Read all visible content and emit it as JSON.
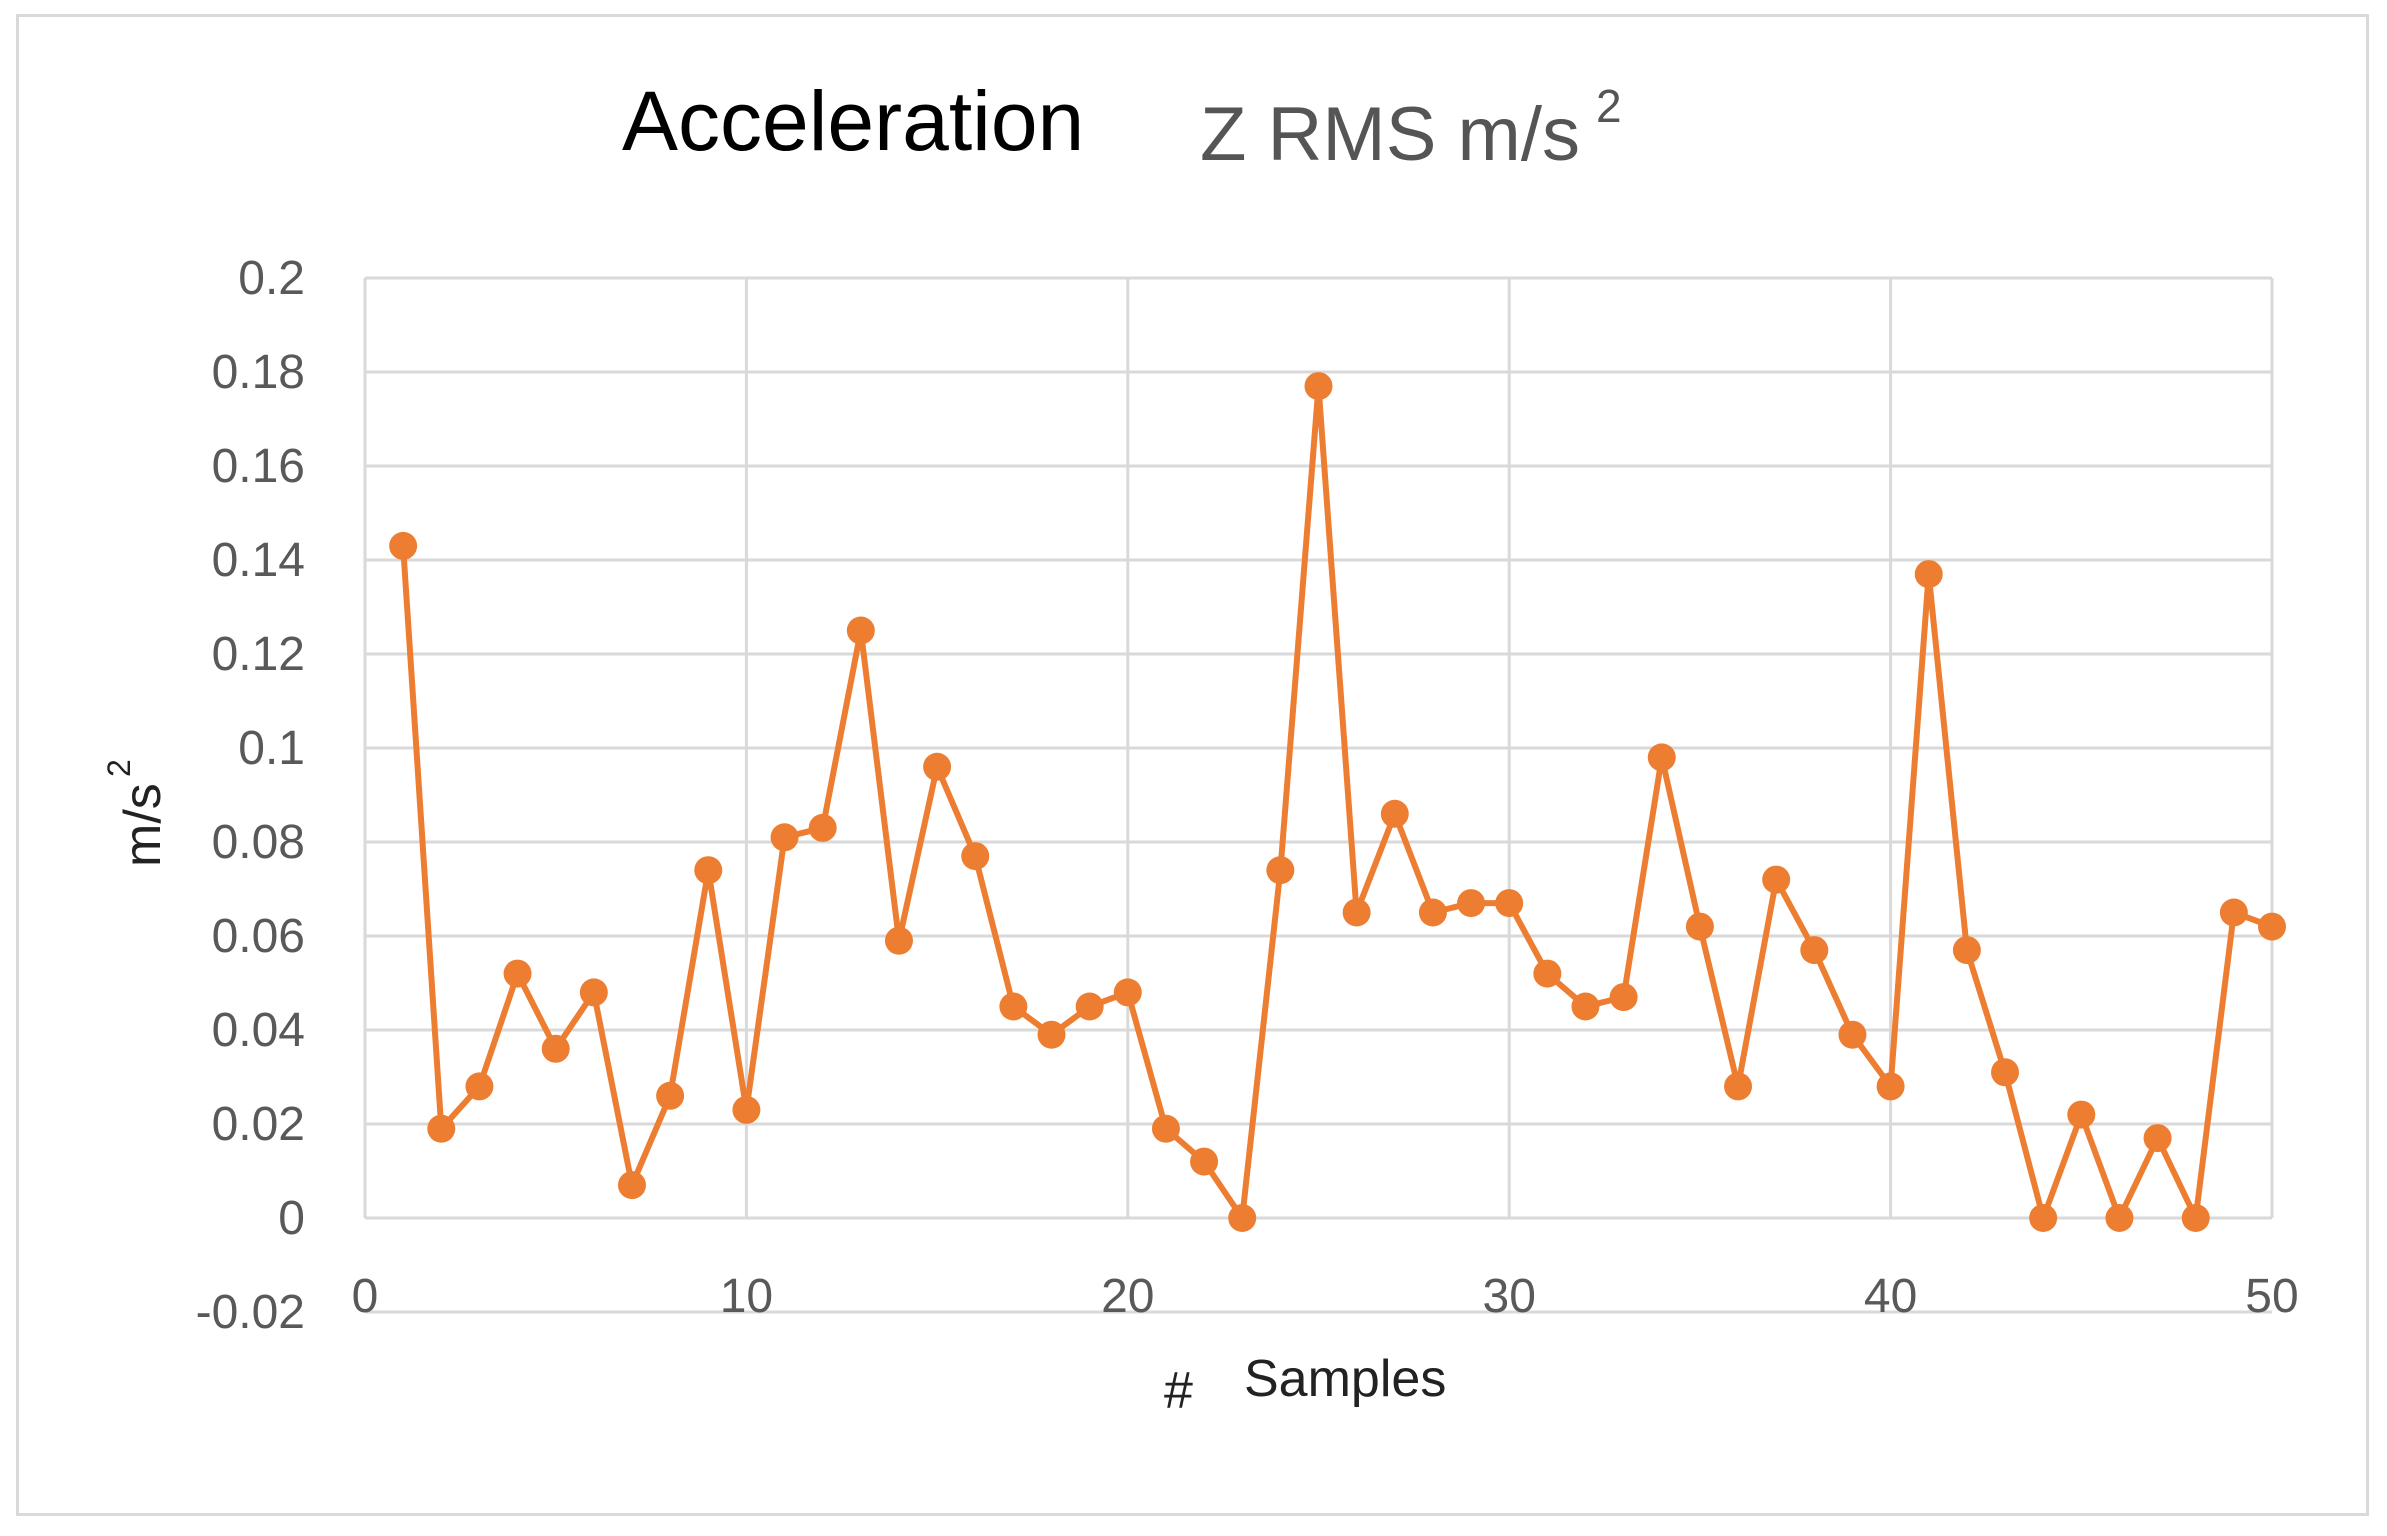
{
  "chart_data": {
    "type": "line",
    "title": "Acceleration",
    "subtitle": "Z RMS m/s",
    "subtitle_sup": "2",
    "xlabel_symbol": "#",
    "xlabel": "Samples",
    "ylabel": "m/s",
    "ylabel_sup": "2",
    "xlim": [
      0,
      50
    ],
    "ylim": [
      -0.02,
      0.2
    ],
    "x_ticks": [
      "0",
      "10",
      "20",
      "30",
      "40",
      "50"
    ],
    "y_ticks": [
      "-0.02",
      "0",
      "0.02",
      "0.04",
      "0.06",
      "0.08",
      "0.1",
      "0.12",
      "0.14",
      "0.16",
      "0.18",
      "0.2"
    ],
    "grid": true,
    "series_color": "#ED7D31",
    "series": [
      {
        "x": [
          1,
          2,
          3,
          4,
          5,
          6,
          7,
          8,
          9,
          10,
          11,
          12,
          13,
          14,
          15,
          16,
          17,
          18,
          19,
          20,
          21,
          22,
          23,
          24,
          25,
          26,
          27,
          28,
          29,
          30,
          31,
          32,
          33,
          34,
          35,
          36,
          37,
          38,
          39,
          40,
          41,
          42,
          43,
          44,
          45,
          46,
          47,
          48,
          49,
          50
        ],
        "values": [
          0.143,
          0.019,
          0.028,
          0.052,
          0.036,
          0.048,
          0.007,
          0.026,
          0.074,
          0.023,
          0.081,
          0.083,
          0.125,
          0.059,
          0.096,
          0.077,
          0.045,
          0.039,
          0.045,
          0.048,
          0.019,
          0.012,
          0.0,
          0.074,
          0.177,
          0.065,
          0.086,
          0.065,
          0.067,
          0.067,
          0.052,
          0.045,
          0.047,
          0.098,
          0.062,
          0.028,
          0.072,
          0.057,
          0.039,
          0.028,
          0.137,
          0.057,
          0.031,
          0.0,
          0.022,
          0.0,
          0.017,
          0.0,
          0.065,
          0.062
        ]
      }
    ]
  }
}
